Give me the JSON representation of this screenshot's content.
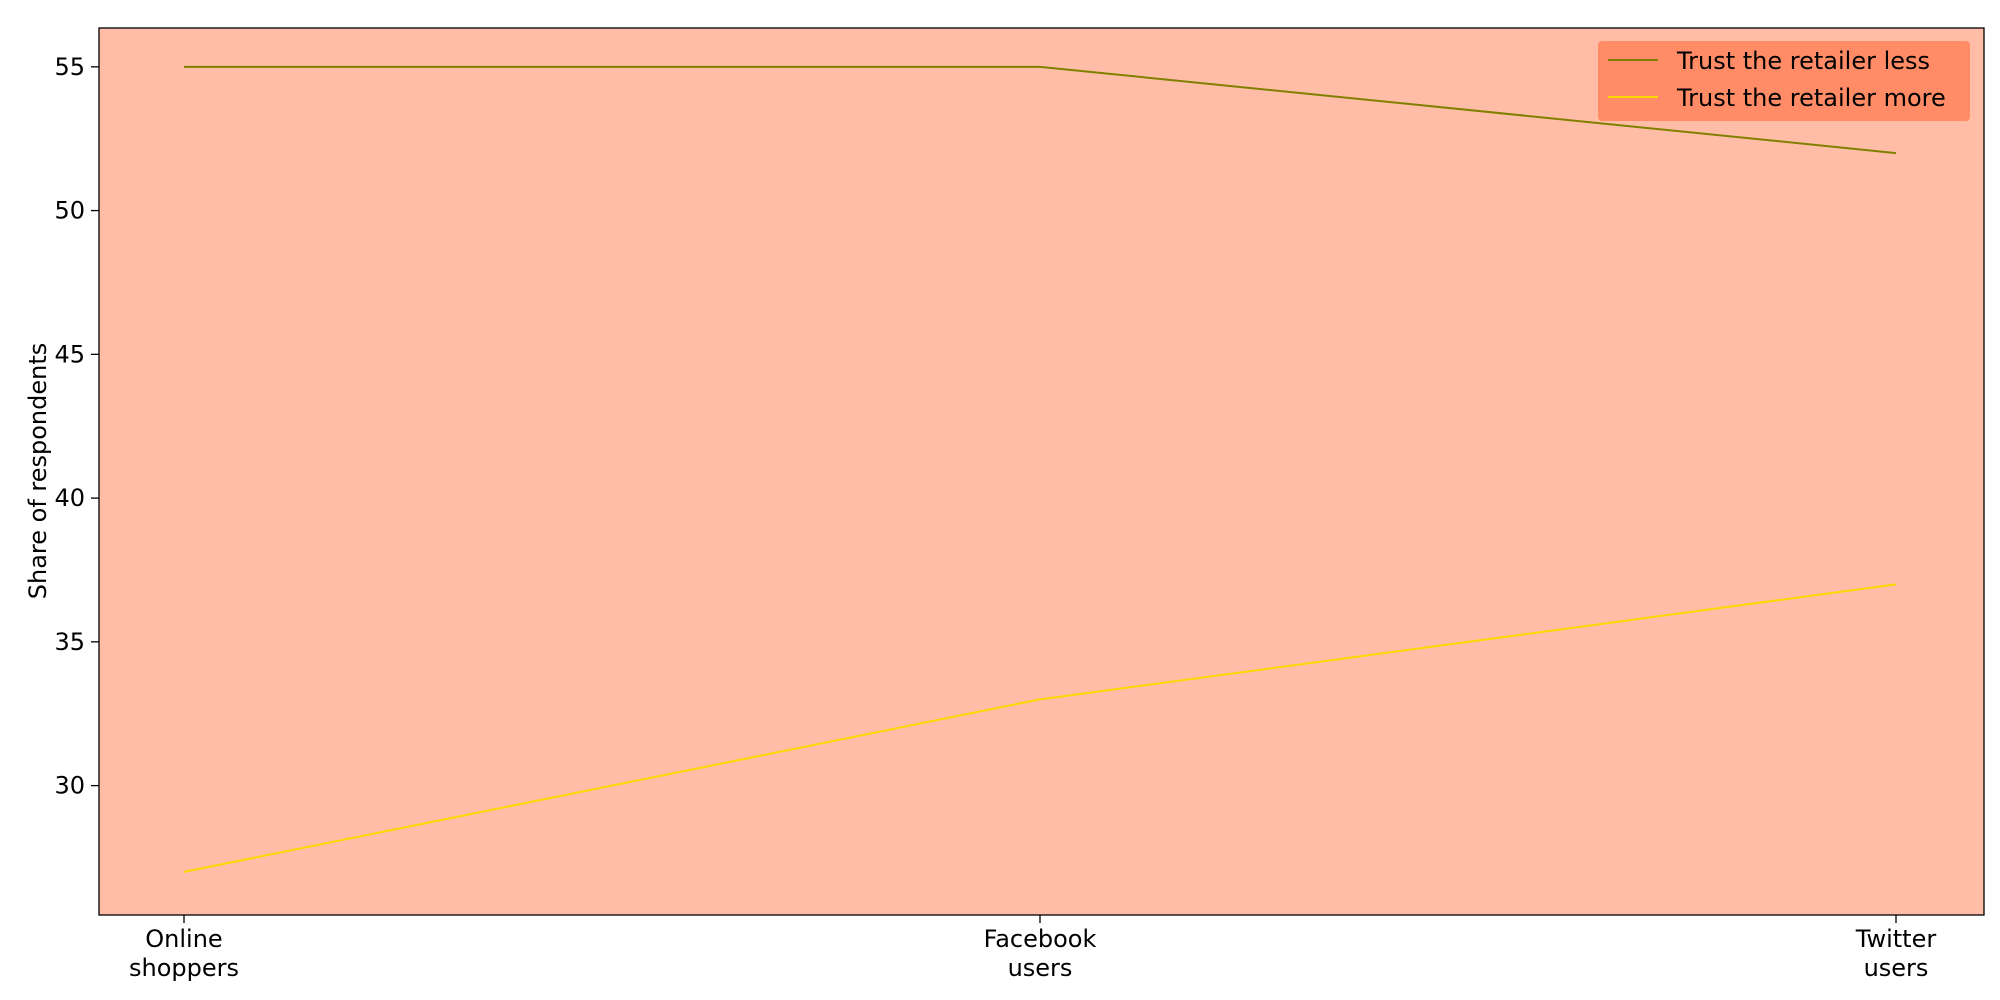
{
  "chart_data": {
    "type": "line",
    "title": "",
    "xlabel": "",
    "ylabel": "Share of respondents",
    "categories": [
      [
        "Online",
        "shoppers"
      ],
      [
        "Facebook",
        "users"
      ],
      [
        "Twitter",
        "users"
      ]
    ],
    "series": [
      {
        "name": "Trust the retailer less",
        "values": [
          55,
          55,
          52
        ],
        "color": "#808000"
      },
      {
        "name": "Trust the retailer more",
        "values": [
          27,
          33,
          37
        ],
        "color": "#ffd700"
      }
    ],
    "ylim": [
      25.5,
      56.35
    ],
    "yticks": [
      30,
      35,
      40,
      45,
      50,
      55
    ],
    "grid": false,
    "legend_position": "top-right",
    "colors": {
      "plot_background": "#ffbca6",
      "legend_background": "#ff8c66",
      "axis": "#000000"
    }
  }
}
